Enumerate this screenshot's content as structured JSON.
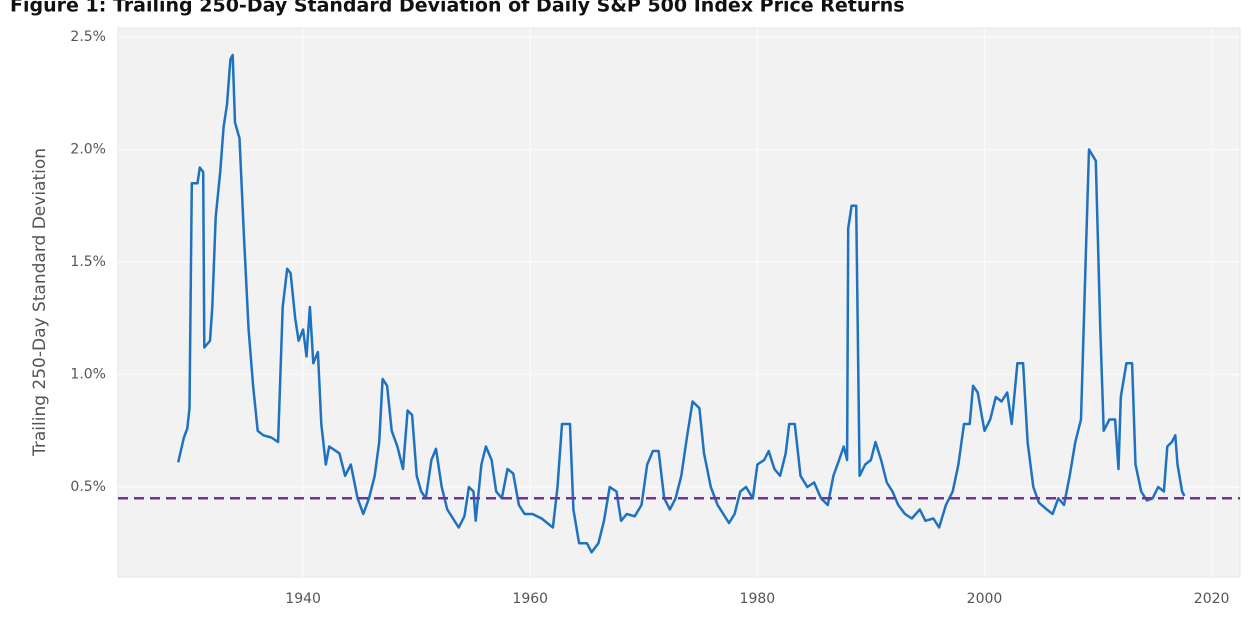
{
  "chart_data": {
    "type": "line",
    "title": "Figure 1: Trailing 250-Day Standard Deviation of Daily S&P 500 Index Price Returns",
    "y_label": "Trailing 250-Day Standard Deviation",
    "xlim": [
      1923.7,
      2022.5
    ],
    "xticks": [
      1940,
      1960,
      1980,
      2000,
      2020
    ],
    "ylim": [
      0.1,
      2.54
    ],
    "yticks": [
      {
        "value": 0.5,
        "label": "0.5%"
      },
      {
        "value": 1.0,
        "label": "1.0%"
      },
      {
        "value": 1.5,
        "label": "1.5%"
      },
      {
        "value": 2.0,
        "label": "2.0%"
      },
      {
        "value": 2.5,
        "label": "2.5%"
      }
    ],
    "grid": true,
    "reference_line": {
      "value": 0.45,
      "color": "#7030a0"
    },
    "series": [
      {
        "color": "#1f72c0",
        "x": [
          1929.0,
          1929.5,
          1929.8,
          1930.0,
          1930.2,
          1930.7,
          1930.9,
          1931.2,
          1931.3,
          1931.8,
          1932.0,
          1932.3,
          1932.7,
          1933.0,
          1933.3,
          1933.6,
          1933.8,
          1934.0,
          1934.4,
          1934.8,
          1935.2,
          1935.6,
          1936.0,
          1936.5,
          1937.2,
          1937.8,
          1938.2,
          1938.6,
          1938.9,
          1939.3,
          1939.6,
          1940.0,
          1940.3,
          1940.6,
          1940.9,
          1941.3,
          1941.6,
          1942.0,
          1942.3,
          1943.2,
          1943.7,
          1944.2,
          1944.8,
          1945.3,
          1945.8,
          1946.3,
          1946.7,
          1947.0,
          1947.4,
          1947.8,
          1948.3,
          1948.8,
          1949.2,
          1949.6,
          1950.0,
          1950.4,
          1950.8,
          1951.3,
          1951.7,
          1952.2,
          1952.7,
          1953.2,
          1953.7,
          1954.2,
          1954.6,
          1955.0,
          1955.2,
          1955.7,
          1956.1,
          1956.6,
          1957.0,
          1957.5,
          1958.0,
          1958.5,
          1959.0,
          1959.5,
          1960.2,
          1961.0,
          1962.0,
          1962.4,
          1962.8,
          1963.5,
          1963.8,
          1964.3,
          1965.0,
          1965.4,
          1966.0,
          1966.5,
          1967.0,
          1967.6,
          1968.0,
          1968.5,
          1969.2,
          1969.8,
          1970.3,
          1970.8,
          1971.3,
          1971.8,
          1972.3,
          1972.8,
          1973.3,
          1973.8,
          1974.3,
          1974.9,
          1975.3,
          1975.9,
          1976.5,
          1977.0,
          1977.5,
          1978.0,
          1978.5,
          1979.0,
          1979.6,
          1980.0,
          1980.6,
          1981.0,
          1981.5,
          1982.0,
          1982.5,
          1982.8,
          1983.3,
          1983.8,
          1984.4,
          1985.0,
          1985.6,
          1986.2,
          1986.7,
          1987.2,
          1987.6,
          1987.9,
          1988.0,
          1988.3,
          1988.7,
          1989.0,
          1989.5,
          1990.0,
          1990.4,
          1990.9,
          1991.4,
          1991.9,
          1992.4,
          1993.0,
          1993.6,
          1994.3,
          1994.8,
          1995.5,
          1996.0,
          1996.6,
          1997.2,
          1997.7,
          1998.2,
          1998.7,
          1999.0,
          1999.4,
          2000.0,
          2000.5,
          2001.0,
          2001.5,
          2002.0,
          2002.4,
          2002.9,
          2003.4,
          2003.8,
          2004.3,
          2004.8,
          2005.5,
          2006.0,
          2006.5,
          2007.0,
          2007.5,
          2008.0,
          2008.5,
          2008.9,
          2009.2,
          2009.8,
          2010.2,
          2010.5,
          2011.0,
          2011.5,
          2011.8,
          2012.0,
          2012.5,
          2013.0,
          2013.3,
          2013.8,
          2014.3,
          2014.8,
          2015.3,
          2015.8,
          2016.1,
          2016.5,
          2016.8,
          2017.0,
          2017.4,
          2017.6
        ],
        "values": [
          0.61,
          0.72,
          0.76,
          0.85,
          1.85,
          1.85,
          1.92,
          1.9,
          1.12,
          1.15,
          1.3,
          1.7,
          1.9,
          2.1,
          2.2,
          2.4,
          2.42,
          2.12,
          2.05,
          1.6,
          1.2,
          0.95,
          0.75,
          0.73,
          0.72,
          0.7,
          1.3,
          1.47,
          1.45,
          1.25,
          1.15,
          1.2,
          1.08,
          1.3,
          1.05,
          1.1,
          0.78,
          0.6,
          0.68,
          0.65,
          0.55,
          0.6,
          0.45,
          0.38,
          0.45,
          0.55,
          0.7,
          0.98,
          0.95,
          0.75,
          0.68,
          0.58,
          0.84,
          0.82,
          0.55,
          0.48,
          0.45,
          0.62,
          0.67,
          0.5,
          0.4,
          0.36,
          0.32,
          0.37,
          0.5,
          0.48,
          0.35,
          0.6,
          0.68,
          0.62,
          0.48,
          0.45,
          0.58,
          0.56,
          0.42,
          0.38,
          0.38,
          0.36,
          0.32,
          0.5,
          0.78,
          0.78,
          0.4,
          0.25,
          0.25,
          0.21,
          0.25,
          0.35,
          0.5,
          0.48,
          0.35,
          0.38,
          0.37,
          0.42,
          0.6,
          0.66,
          0.66,
          0.45,
          0.4,
          0.45,
          0.55,
          0.72,
          0.88,
          0.85,
          0.65,
          0.5,
          0.42,
          0.38,
          0.34,
          0.38,
          0.48,
          0.5,
          0.45,
          0.6,
          0.62,
          0.66,
          0.58,
          0.55,
          0.65,
          0.78,
          0.78,
          0.55,
          0.5,
          0.52,
          0.45,
          0.42,
          0.55,
          0.62,
          0.68,
          0.62,
          1.65,
          1.75,
          1.75,
          0.55,
          0.6,
          0.62,
          0.7,
          0.62,
          0.52,
          0.48,
          0.42,
          0.38,
          0.36,
          0.4,
          0.35,
          0.36,
          0.32,
          0.42,
          0.48,
          0.6,
          0.78,
          0.78,
          0.95,
          0.92,
          0.75,
          0.8,
          0.9,
          0.88,
          0.92,
          0.78,
          1.05,
          1.05,
          0.7,
          0.5,
          0.43,
          0.4,
          0.38,
          0.45,
          0.42,
          0.55,
          0.7,
          0.8,
          1.5,
          2.0,
          1.95,
          1.2,
          0.75,
          0.8,
          0.8,
          0.58,
          0.9,
          1.05,
          1.05,
          0.6,
          0.48,
          0.44,
          0.45,
          0.5,
          0.48,
          0.68,
          0.7,
          0.73,
          0.6,
          0.48,
          0.46
        ]
      }
    ]
  }
}
